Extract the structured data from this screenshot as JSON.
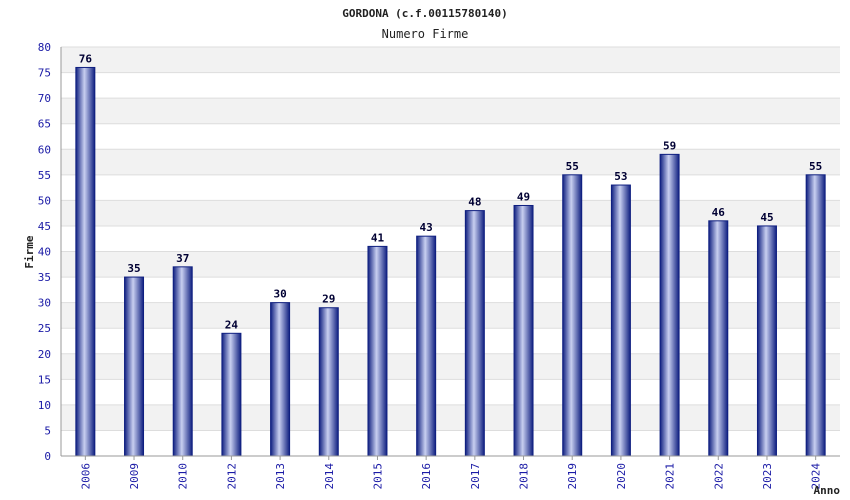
{
  "chart_data": {
    "type": "bar",
    "title": "GORDONA (c.f.00115780140)",
    "subtitle": "Numero Firme",
    "xlabel": "Anno",
    "ylabel": "Firme",
    "ylim": [
      0,
      80
    ],
    "ytick_step": 5,
    "grid": true,
    "categories": [
      "2006",
      "2009",
      "2010",
      "2012",
      "2013",
      "2014",
      "2015",
      "2016",
      "2017",
      "2018",
      "2019",
      "2020",
      "2021",
      "2022",
      "2023",
      "2024"
    ],
    "values": [
      76,
      35,
      37,
      24,
      30,
      29,
      41,
      43,
      48,
      49,
      55,
      53,
      59,
      46,
      45,
      55
    ],
    "colors": {
      "bar_dark": "#0f1f80",
      "bar_light": "#c8cff0",
      "band": "#f2f2f2",
      "grid": "#dddddd",
      "tick": "#1a1aa6"
    }
  }
}
